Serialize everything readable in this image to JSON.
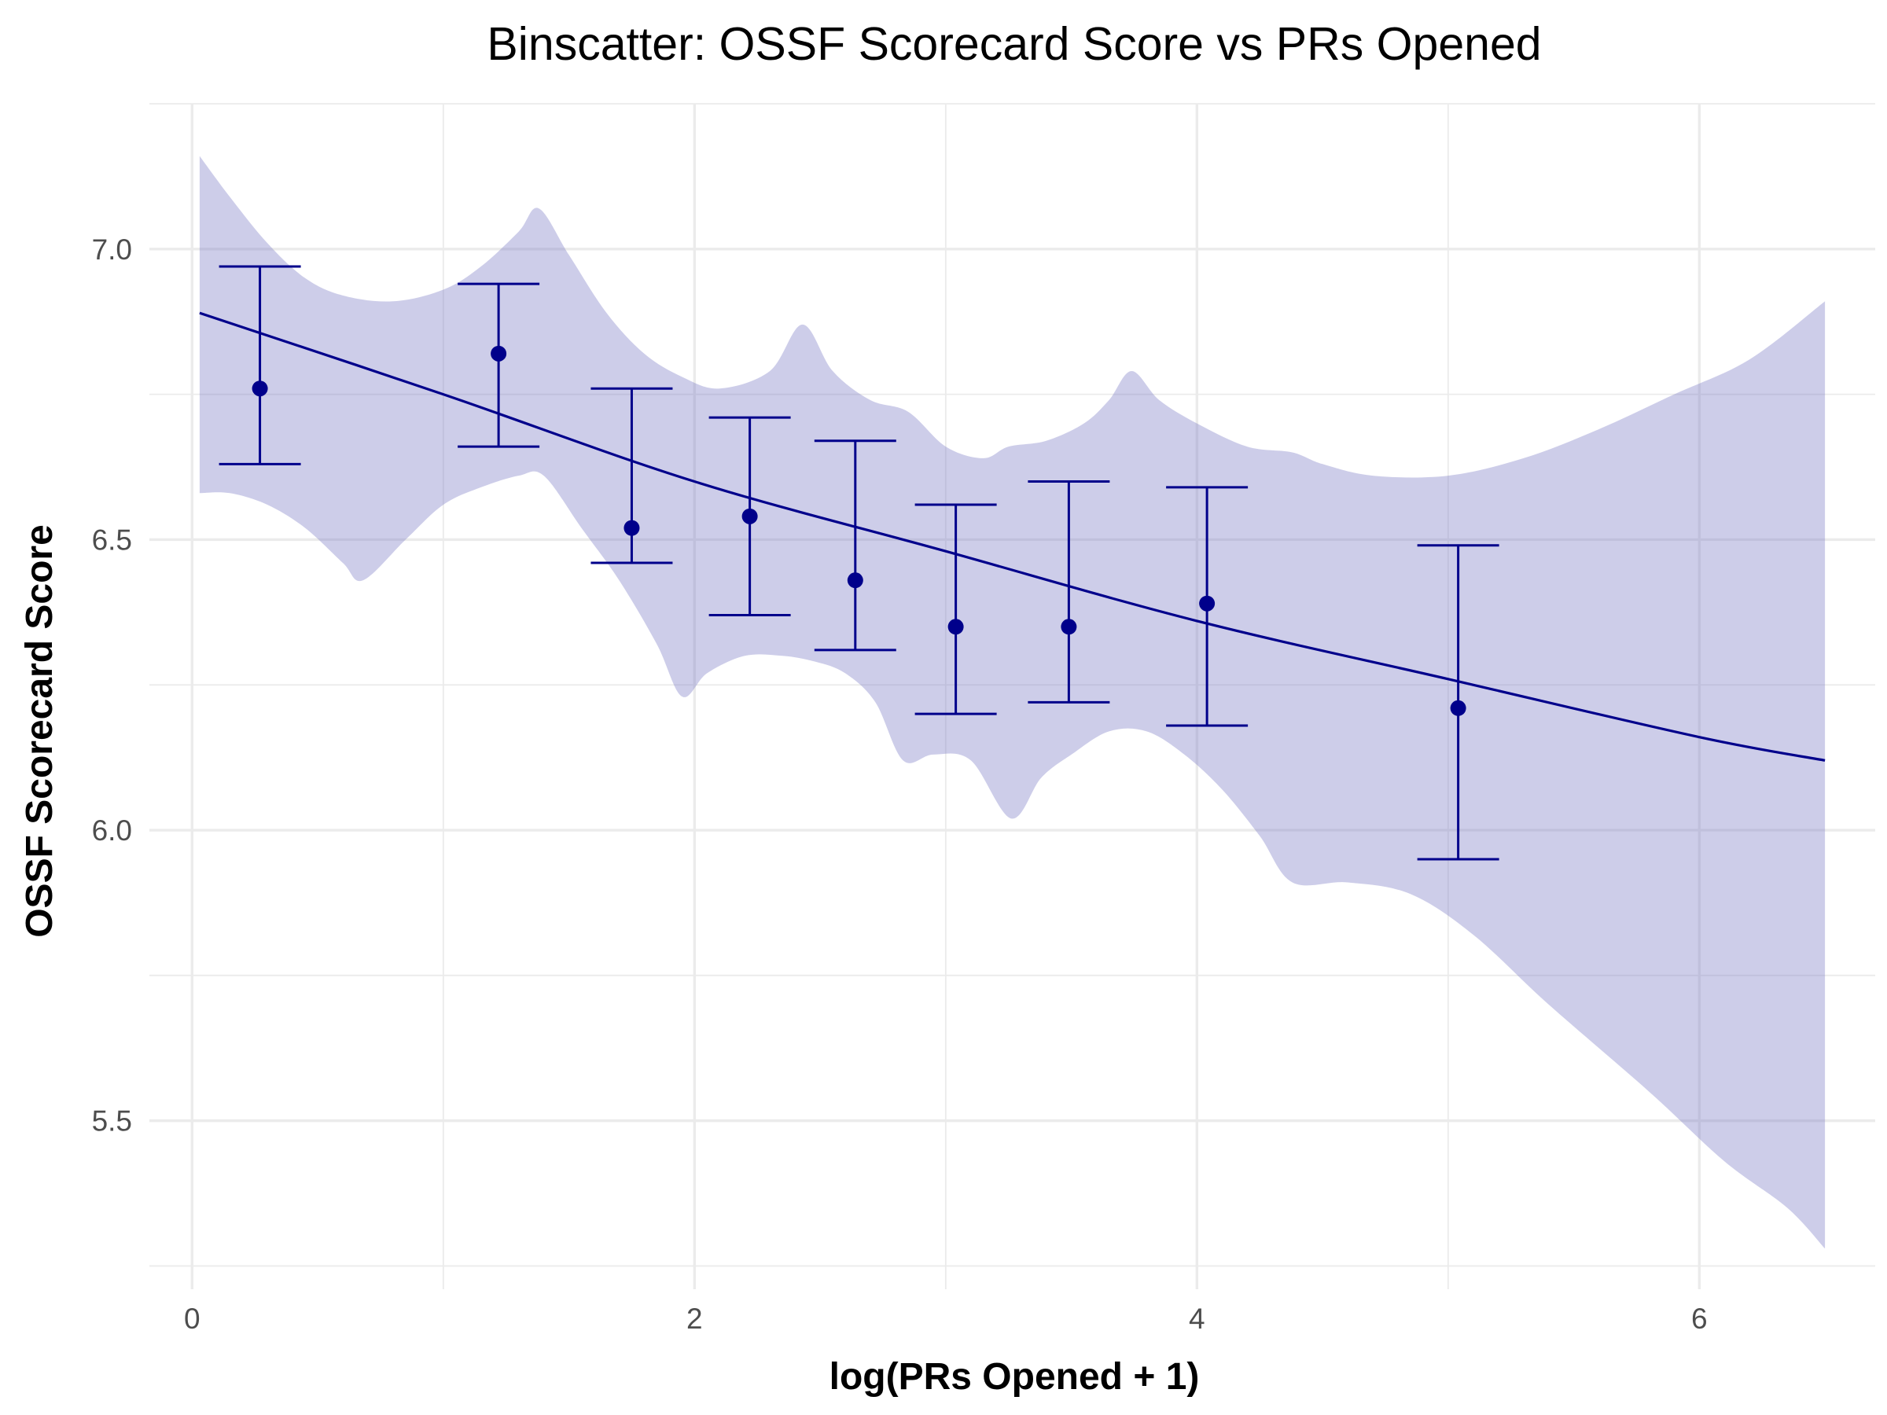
{
  "chart_data": {
    "type": "scatter",
    "title": "Binscatter: OSSF Scorecard Score vs PRs Opened",
    "xlabel": "log(PRs Opened + 1)",
    "ylabel": "OSSF Scorecard Score",
    "xlim": [
      -0.17,
      6.7
    ],
    "ylim": [
      5.21,
      7.25
    ],
    "x_ticks": [
      0,
      2,
      4,
      6
    ],
    "x_tick_labels": [
      "0",
      "2",
      "4",
      "6"
    ],
    "y_ticks": [
      5.5,
      6.0,
      6.5,
      7.0
    ],
    "y_tick_labels": [
      "5.5",
      "6.0",
      "6.5",
      "7.0"
    ],
    "x_minor_ticks": [
      1,
      3,
      5
    ],
    "y_minor_ticks": [
      5.25,
      5.75,
      6.25,
      6.75,
      7.25
    ],
    "grid": true,
    "legend": "none",
    "colors": {
      "points": "#00008b",
      "fit_line": "#00008b",
      "ribbon": "#7b7bc4",
      "grid": "#ebebeb"
    },
    "points": [
      {
        "x": 0.27,
        "y": 6.76,
        "lo": 6.63,
        "hi": 6.97
      },
      {
        "x": 1.22,
        "y": 6.82,
        "lo": 6.66,
        "hi": 6.94
      },
      {
        "x": 1.75,
        "y": 6.52,
        "lo": 6.46,
        "hi": 6.76
      },
      {
        "x": 2.22,
        "y": 6.54,
        "lo": 6.37,
        "hi": 6.71
      },
      {
        "x": 2.64,
        "y": 6.43,
        "lo": 6.31,
        "hi": 6.67
      },
      {
        "x": 3.04,
        "y": 6.35,
        "lo": 6.2,
        "hi": 6.56
      },
      {
        "x": 3.49,
        "y": 6.35,
        "lo": 6.22,
        "hi": 6.6
      },
      {
        "x": 4.04,
        "y": 6.39,
        "lo": 6.18,
        "hi": 6.59
      },
      {
        "x": 5.04,
        "y": 6.21,
        "lo": 5.95,
        "hi": 6.49
      }
    ],
    "fit_line": {
      "x": [
        0.03,
        1.0,
        2.0,
        3.0,
        4.0,
        5.0,
        6.0,
        6.5
      ],
      "y": [
        6.89,
        6.75,
        6.6,
        6.48,
        6.36,
        6.26,
        6.16,
        6.12
      ]
    },
    "ribbon": {
      "upper": [
        [
          0.03,
          7.16
        ],
        [
          0.15,
          7.09
        ],
        [
          0.3,
          7.01
        ],
        [
          0.45,
          6.95
        ],
        [
          0.6,
          6.92
        ],
        [
          0.8,
          6.91
        ],
        [
          1.0,
          6.93
        ],
        [
          1.15,
          6.97
        ],
        [
          1.3,
          7.03
        ],
        [
          1.38,
          7.07
        ],
        [
          1.5,
          6.99
        ],
        [
          1.65,
          6.89
        ],
        [
          1.8,
          6.82
        ],
        [
          1.95,
          6.78
        ],
        [
          2.1,
          6.76
        ],
        [
          2.3,
          6.79
        ],
        [
          2.43,
          6.87
        ],
        [
          2.55,
          6.79
        ],
        [
          2.7,
          6.74
        ],
        [
          2.85,
          6.72
        ],
        [
          3.0,
          6.66
        ],
        [
          3.15,
          6.64
        ],
        [
          3.25,
          6.66
        ],
        [
          3.4,
          6.67
        ],
        [
          3.55,
          6.7
        ],
        [
          3.65,
          6.74
        ],
        [
          3.74,
          6.79
        ],
        [
          3.85,
          6.74
        ],
        [
          4.0,
          6.7
        ],
        [
          4.2,
          6.66
        ],
        [
          4.38,
          6.65
        ],
        [
          4.5,
          6.63
        ],
        [
          4.7,
          6.61
        ],
        [
          5.0,
          6.61
        ],
        [
          5.3,
          6.64
        ],
        [
          5.6,
          6.69
        ],
        [
          5.9,
          6.75
        ],
        [
          6.2,
          6.81
        ],
        [
          6.5,
          6.91
        ]
      ],
      "lower": [
        [
          0.03,
          6.58
        ],
        [
          0.15,
          6.58
        ],
        [
          0.3,
          6.56
        ],
        [
          0.45,
          6.52
        ],
        [
          0.6,
          6.46
        ],
        [
          0.68,
          6.43
        ],
        [
          0.85,
          6.5
        ],
        [
          1.0,
          6.56
        ],
        [
          1.15,
          6.59
        ],
        [
          1.3,
          6.61
        ],
        [
          1.4,
          6.61
        ],
        [
          1.55,
          6.52
        ],
        [
          1.7,
          6.43
        ],
        [
          1.85,
          6.32
        ],
        [
          1.95,
          6.23
        ],
        [
          2.05,
          6.27
        ],
        [
          2.2,
          6.3
        ],
        [
          2.35,
          6.3
        ],
        [
          2.48,
          6.29
        ],
        [
          2.6,
          6.27
        ],
        [
          2.72,
          6.22
        ],
        [
          2.83,
          6.12
        ],
        [
          2.95,
          6.13
        ],
        [
          3.1,
          6.12
        ],
        [
          3.26,
          6.02
        ],
        [
          3.38,
          6.09
        ],
        [
          3.5,
          6.13
        ],
        [
          3.65,
          6.17
        ],
        [
          3.8,
          6.17
        ],
        [
          3.95,
          6.13
        ],
        [
          4.1,
          6.07
        ],
        [
          4.25,
          5.99
        ],
        [
          4.38,
          5.91
        ],
        [
          4.6,
          5.91
        ],
        [
          4.85,
          5.89
        ],
        [
          5.1,
          5.82
        ],
        [
          5.4,
          5.7
        ],
        [
          5.8,
          5.55
        ],
        [
          6.1,
          5.43
        ],
        [
          6.35,
          5.35
        ],
        [
          6.5,
          5.28
        ]
      ]
    }
  }
}
